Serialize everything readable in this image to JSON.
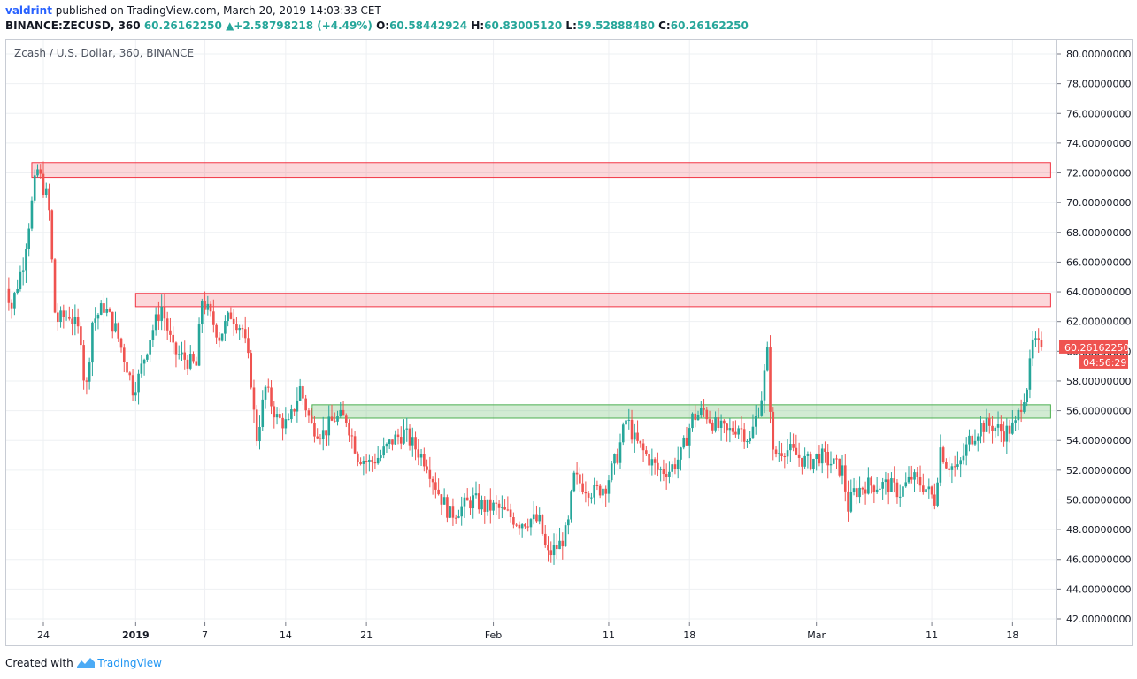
{
  "header": {
    "author": "valdrint",
    "published_text": " published on TradingView.com, March 20, 2019 14:03:33 CET",
    "symbol_line": "BINANCE:ZECUSD, 360",
    "last": "60.26162250",
    "change": "▲+2.58798218 (+4.49%)",
    "o_label": "O:",
    "o_value": "60.58442924",
    "h_label": "H:",
    "h_value": "60.83005120",
    "l_label": "L:",
    "l_value": "59.52888480",
    "c_label": "C:",
    "c_value": "60.26162250"
  },
  "legend": "Zcash / U.S. Dollar, 360, BINANCE",
  "price_badge": "60.26162250",
  "countdown_badge": "04:56:29",
  "footer": {
    "created_with": "Created with",
    "brand": "TradingView"
  },
  "colors": {
    "up": "#26a69a",
    "down": "#ef5350",
    "resistance": "#f23645",
    "support": "#4caf50",
    "grid": "#eef0f3"
  },
  "chart_data": {
    "type": "candlestick",
    "ylim": [
      42,
      80
    ],
    "y_ticks": [
      "80.00000000",
      "78.00000000",
      "76.00000000",
      "74.00000000",
      "72.00000000",
      "70.00000000",
      "68.00000000",
      "66.00000000",
      "64.00000000",
      "62.00000000",
      "60.00000000",
      "58.00000000",
      "56.00000000",
      "54.00000000",
      "52.00000000",
      "50.00000000",
      "48.00000000",
      "46.00000000",
      "44.00000000",
      "42.00000000"
    ],
    "x_ticks": [
      {
        "label": "24",
        "day": 0
      },
      {
        "label": "2019",
        "day": 8,
        "bold": true
      },
      {
        "label": "7",
        "day": 14
      },
      {
        "label": "14",
        "day": 21
      },
      {
        "label": "21",
        "day": 28
      },
      {
        "label": "Feb",
        "day": 39
      },
      {
        "label": "11",
        "day": 49
      },
      {
        "label": "18",
        "day": 56
      },
      {
        "label": "Mar",
        "day": 67
      },
      {
        "label": "11",
        "day": 77
      },
      {
        "label": "18",
        "day": 84
      }
    ],
    "days_range": [
      -3.5,
      87.3
    ],
    "zones": [
      {
        "kind": "resistance",
        "from_day": -1.0,
        "to_day": 87.3,
        "low": 71.7,
        "high": 72.7
      },
      {
        "kind": "resistance",
        "from_day": 8.0,
        "to_day": 87.3,
        "low": 63.0,
        "high": 63.9
      },
      {
        "kind": "support",
        "from_day": 23.3,
        "to_day": 87.3,
        "low": 55.5,
        "high": 56.4
      }
    ],
    "anchors": [
      {
        "day": -3.5,
        "price": 66.0
      },
      {
        "day": -2.5,
        "price": 63.0
      },
      {
        "day": -1.5,
        "price": 66.0
      },
      {
        "day": -0.3,
        "price": 72.3
      },
      {
        "day": 0.7,
        "price": 70.0
      },
      {
        "day": 1.3,
        "price": 62.0
      },
      {
        "day": 2.5,
        "price": 62.5
      },
      {
        "day": 3.5,
        "price": 61.0
      },
      {
        "day": 3.9,
        "price": 56.8
      },
      {
        "day": 4.5,
        "price": 62.0
      },
      {
        "day": 5.5,
        "price": 63.0
      },
      {
        "day": 6.5,
        "price": 61.5
      },
      {
        "day": 7.5,
        "price": 59.0
      },
      {
        "day": 8.0,
        "price": 57.5
      },
      {
        "day": 8.5,
        "price": 58.2
      },
      {
        "day": 9.5,
        "price": 61.0
      },
      {
        "day": 10.5,
        "price": 63.0
      },
      {
        "day": 11.5,
        "price": 60.0
      },
      {
        "day": 12.5,
        "price": 59.5
      },
      {
        "day": 13.5,
        "price": 59.0
      },
      {
        "day": 14.0,
        "price": 63.5
      },
      {
        "day": 14.8,
        "price": 62.2
      },
      {
        "day": 15.5,
        "price": 61.0
      },
      {
        "day": 16.5,
        "price": 62.5
      },
      {
        "day": 17.5,
        "price": 61.5
      },
      {
        "day": 18.2,
        "price": 58.5
      },
      {
        "day": 18.7,
        "price": 54.0
      },
      {
        "day": 19.5,
        "price": 57.5
      },
      {
        "day": 20.5,
        "price": 55.5
      },
      {
        "day": 21.5,
        "price": 55.0
      },
      {
        "day": 22.5,
        "price": 57.5
      },
      {
        "day": 23.5,
        "price": 55.0
      },
      {
        "day": 24.5,
        "price": 54.5
      },
      {
        "day": 25.5,
        "price": 55.5
      },
      {
        "day": 26.5,
        "price": 55.5
      },
      {
        "day": 27.5,
        "price": 53.0
      },
      {
        "day": 28.5,
        "price": 52.5
      },
      {
        "day": 29.5,
        "price": 53.0
      },
      {
        "day": 30.5,
        "price": 54.0
      },
      {
        "day": 31.5,
        "price": 54.5
      },
      {
        "day": 32.5,
        "price": 53.5
      },
      {
        "day": 33.5,
        "price": 52.5
      },
      {
        "day": 34.5,
        "price": 50.5
      },
      {
        "day": 35.5,
        "price": 49.0
      },
      {
        "day": 36.5,
        "price": 49.5
      },
      {
        "day": 37.5,
        "price": 50.0
      },
      {
        "day": 38.5,
        "price": 49.5
      },
      {
        "day": 39.5,
        "price": 49.5
      },
      {
        "day": 40.5,
        "price": 49.0
      },
      {
        "day": 41.5,
        "price": 48.5
      },
      {
        "day": 42.5,
        "price": 48.7
      },
      {
        "day": 43.3,
        "price": 48.5
      },
      {
        "day": 43.9,
        "price": 46.2
      },
      {
        "day": 45.0,
        "price": 47.0
      },
      {
        "day": 45.7,
        "price": 48.0
      },
      {
        "day": 46.2,
        "price": 51.5
      },
      {
        "day": 47.0,
        "price": 51.0
      },
      {
        "day": 48.0,
        "price": 50.5
      },
      {
        "day": 49.0,
        "price": 51.0
      },
      {
        "day": 50.0,
        "price": 53.0
      },
      {
        "day": 50.8,
        "price": 55.5
      },
      {
        "day": 51.5,
        "price": 54.0
      },
      {
        "day": 52.5,
        "price": 53.0
      },
      {
        "day": 53.5,
        "price": 52.0
      },
      {
        "day": 54.5,
        "price": 52.0
      },
      {
        "day": 55.5,
        "price": 53.0
      },
      {
        "day": 56.5,
        "price": 55.5
      },
      {
        "day": 57.5,
        "price": 56.0
      },
      {
        "day": 58.5,
        "price": 55.0
      },
      {
        "day": 59.5,
        "price": 54.5
      },
      {
        "day": 60.5,
        "price": 55.0
      },
      {
        "day": 61.5,
        "price": 54.0
      },
      {
        "day": 62.5,
        "price": 57.0
      },
      {
        "day": 63.0,
        "price": 59.8
      },
      {
        "day": 63.5,
        "price": 53.0
      },
      {
        "day": 64.5,
        "price": 53.5
      },
      {
        "day": 65.5,
        "price": 53.0
      },
      {
        "day": 66.5,
        "price": 52.5
      },
      {
        "day": 67.5,
        "price": 53.0
      },
      {
        "day": 68.5,
        "price": 52.5
      },
      {
        "day": 69.5,
        "price": 52.0
      },
      {
        "day": 70.0,
        "price": 49.5
      },
      {
        "day": 70.5,
        "price": 50.5
      },
      {
        "day": 71.5,
        "price": 51.0
      },
      {
        "day": 72.5,
        "price": 51.0
      },
      {
        "day": 73.5,
        "price": 51.0
      },
      {
        "day": 74.5,
        "price": 50.5
      },
      {
        "day": 75.5,
        "price": 51.5
      },
      {
        "day": 76.5,
        "price": 51.0
      },
      {
        "day": 77.5,
        "price": 50.0
      },
      {
        "day": 78.0,
        "price": 53.5
      },
      {
        "day": 78.5,
        "price": 52.5
      },
      {
        "day": 79.5,
        "price": 52.0
      },
      {
        "day": 80.5,
        "price": 54.0
      },
      {
        "day": 81.5,
        "price": 55.0
      },
      {
        "day": 82.5,
        "price": 55.0
      },
      {
        "day": 83.5,
        "price": 54.5
      },
      {
        "day": 84.5,
        "price": 55.0
      },
      {
        "day": 85.0,
        "price": 56.5
      },
      {
        "day": 85.6,
        "price": 58.0
      },
      {
        "day": 86.0,
        "price": 60.5
      },
      {
        "day": 86.5,
        "price": 60.26
      }
    ],
    "last_price": 60.2616225
  }
}
